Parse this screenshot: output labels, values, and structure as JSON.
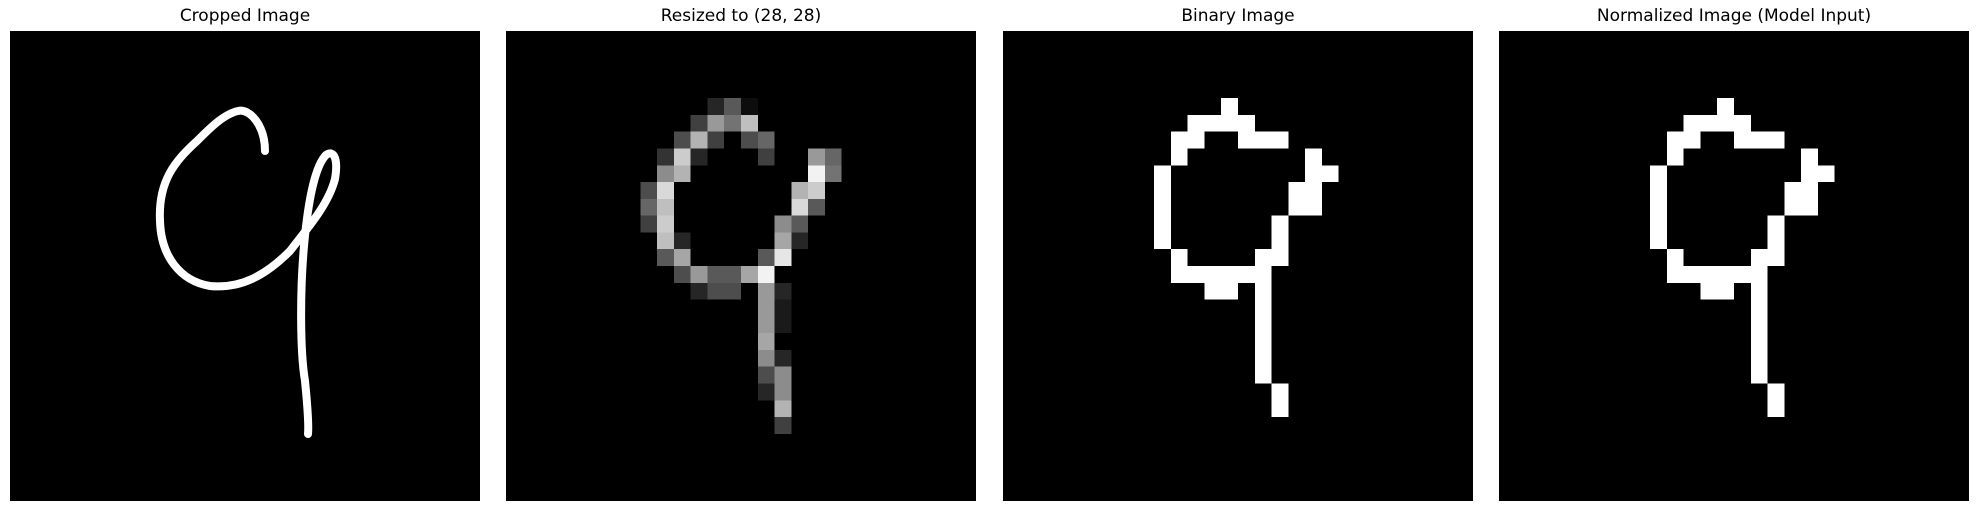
{
  "colors": {
    "background": "#000000",
    "stroke": "#ffffff",
    "page": "#ffffff"
  },
  "panels": [
    {
      "title": "Cropped Image"
    },
    {
      "title": "Resized to (28, 28)"
    },
    {
      "title": "Binary Image"
    },
    {
      "title": "Normalized Image (Model Input)"
    }
  ]
}
